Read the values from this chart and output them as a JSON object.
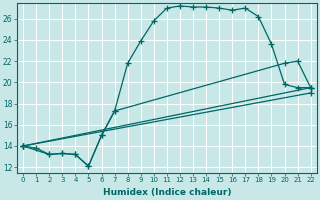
{
  "xlabel": "Humidex (Indice chaleur)",
  "ylabel": "",
  "bg_color": "#c8e8e8",
  "grid_color": "#ffffff",
  "line_color": "#006666",
  "xlim": [
    -0.5,
    22.5
  ],
  "ylim": [
    11.5,
    27.5
  ],
  "xticks": [
    0,
    1,
    2,
    3,
    4,
    5,
    6,
    7,
    8,
    9,
    10,
    11,
    12,
    13,
    14,
    15,
    16,
    17,
    18,
    19,
    20,
    21,
    22
  ],
  "yticks": [
    12,
    14,
    16,
    18,
    20,
    22,
    24,
    26
  ],
  "line1_x": [
    0,
    1,
    2,
    3,
    4,
    5,
    6,
    7,
    8,
    9,
    10,
    11,
    12,
    13,
    14,
    15,
    16,
    17,
    18,
    19,
    20,
    21,
    22
  ],
  "line1_y": [
    14.0,
    13.8,
    13.2,
    13.3,
    13.2,
    12.1,
    15.0,
    17.3,
    21.8,
    23.9,
    25.8,
    27.0,
    27.2,
    27.1,
    27.1,
    27.0,
    26.8,
    27.0,
    26.2,
    23.6,
    19.8,
    19.5,
    19.5
  ],
  "line2_x": [
    0,
    2,
    3,
    4,
    5,
    6,
    7,
    20,
    21,
    22
  ],
  "line2_y": [
    14.0,
    13.2,
    13.3,
    13.2,
    12.1,
    15.0,
    17.3,
    21.8,
    22.0,
    19.5
  ],
  "line3_x": [
    0,
    22
  ],
  "line3_y": [
    14.0,
    19.5
  ],
  "line4_x": [
    0,
    22
  ],
  "line4_y": [
    14.0,
    19.0
  ]
}
